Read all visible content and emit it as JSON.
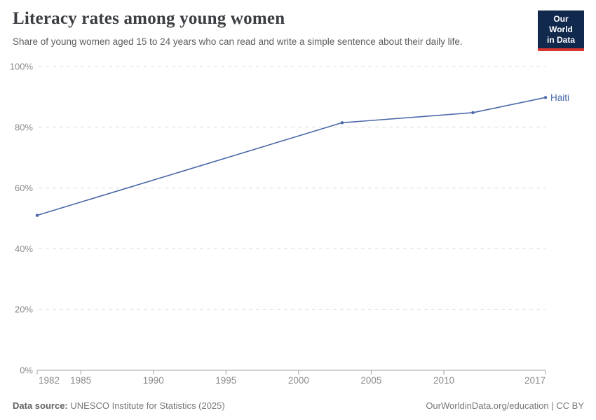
{
  "header": {
    "title": "Literacy rates among young women",
    "subtitle": "Share of young women aged 15 to 24 years who can read and write a simple sentence about their daily life."
  },
  "logo": {
    "line1": "Our World",
    "line2": "in Data",
    "bg_color": "#12294e",
    "bar_color": "#d8352f"
  },
  "footer": {
    "datasource_label": "Data source:",
    "datasource_value": " UNESCO Institute for Statistics (2025)",
    "credit": "OurWorldinData.org/education | CC BY"
  },
  "chart_data": {
    "type": "line",
    "title": "Literacy rates among young women",
    "subtitle": "Share of young women aged 15 to 24 years who can read and write a simple sentence about their daily life.",
    "xlabel": "",
    "ylabel": "",
    "xlim": [
      1982,
      2017
    ],
    "ylim": [
      0,
      100
    ],
    "x_ticks": [
      1982,
      1985,
      1990,
      1995,
      2000,
      2005,
      2010,
      2017
    ],
    "y_ticks": [
      0,
      20,
      40,
      60,
      80,
      100
    ],
    "y_tick_suffix": "%",
    "grid": "horizontal-dashed",
    "legend_position": "end-of-line-label",
    "gridline_color": "#dcdcdc",
    "axis_line_color": "#a3a3a3",
    "axis_text_color": "#8c8c8c",
    "series": [
      {
        "name": "Haiti",
        "color": "#4a68a8",
        "points": [
          {
            "x": 1982,
            "y": 51
          },
          {
            "x": 2003,
            "y": 81.5
          },
          {
            "x": 2012,
            "y": 84.8
          },
          {
            "x": 2017,
            "y": 89.8
          }
        ]
      }
    ]
  }
}
